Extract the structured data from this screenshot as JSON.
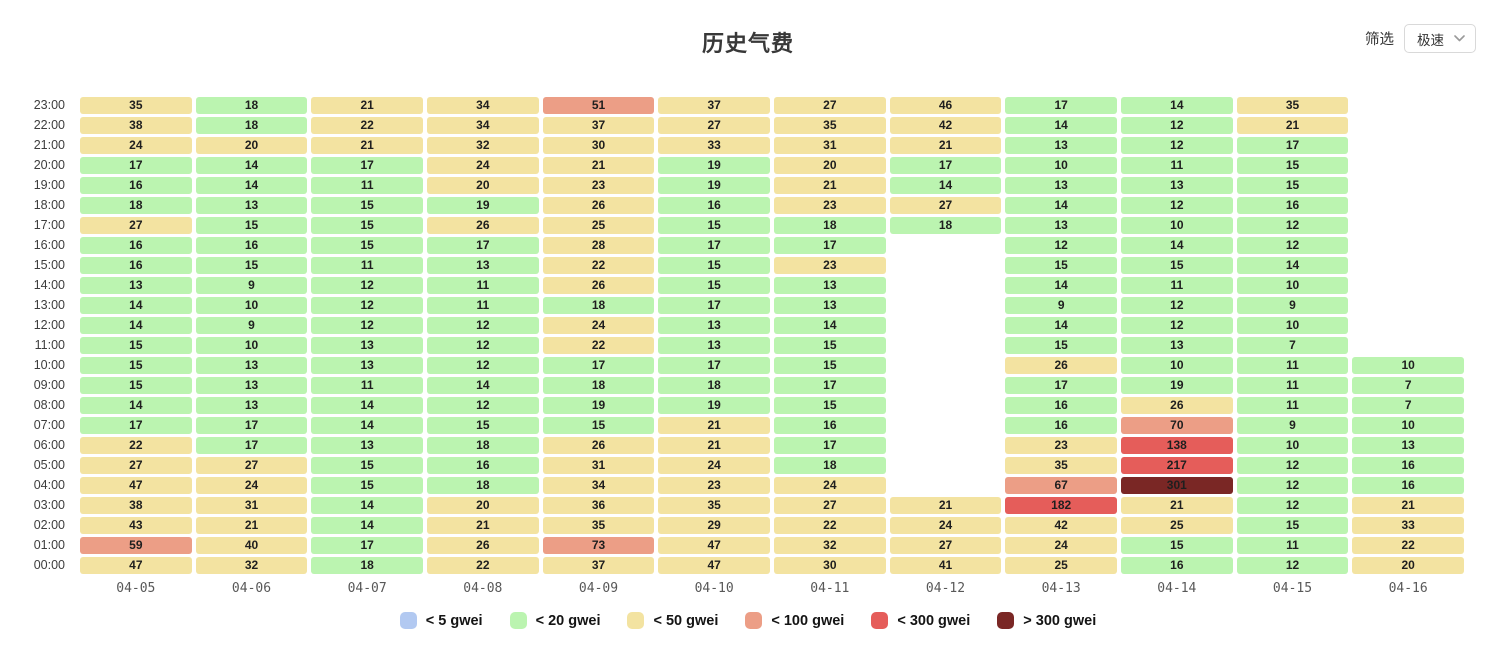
{
  "header": {
    "title": "历史气费",
    "filter_label": "筛选",
    "filter_value": "极速"
  },
  "chart_data": {
    "type": "heatmap",
    "title": "历史气费",
    "unit": "gwei",
    "columns": [
      "04-05",
      "04-06",
      "04-07",
      "04-08",
      "04-09",
      "04-10",
      "04-11",
      "04-12",
      "04-13",
      "04-14",
      "04-15",
      "04-16"
    ],
    "rows": [
      "23:00",
      "22:00",
      "21:00",
      "20:00",
      "19:00",
      "18:00",
      "17:00",
      "16:00",
      "15:00",
      "14:00",
      "13:00",
      "12:00",
      "11:00",
      "10:00",
      "09:00",
      "08:00",
      "07:00",
      "06:00",
      "05:00",
      "04:00",
      "03:00",
      "02:00",
      "01:00",
      "00:00"
    ],
    "color_scale": [
      {
        "label": "< 5 gwei",
        "max": 5,
        "color": "#b2c9f1"
      },
      {
        "label": "< 20 gwei",
        "max": 20,
        "color": "#bbf4b0"
      },
      {
        "label": "< 50 gwei",
        "max": 50,
        "color": "#f3e3a1"
      },
      {
        "label": "< 100 gwei",
        "max": 100,
        "color": "#ec9e86"
      },
      {
        "label": "< 300 gwei",
        "max": 300,
        "color": "#e55d5a"
      },
      {
        "label": "> 300 gwei",
        "max": null,
        "color": "#7a2725"
      }
    ],
    "values": [
      [
        35,
        18,
        21,
        34,
        51,
        37,
        27,
        46,
        17,
        14,
        35,
        null
      ],
      [
        38,
        18,
        22,
        34,
        37,
        27,
        35,
        42,
        14,
        12,
        21,
        null
      ],
      [
        24,
        20,
        21,
        32,
        30,
        33,
        31,
        21,
        13,
        12,
        17,
        null
      ],
      [
        17,
        14,
        17,
        24,
        21,
        19,
        20,
        17,
        10,
        11,
        15,
        null
      ],
      [
        16,
        14,
        11,
        20,
        23,
        19,
        21,
        14,
        13,
        13,
        15,
        null
      ],
      [
        18,
        13,
        15,
        19,
        26,
        16,
        23,
        27,
        14,
        12,
        16,
        null
      ],
      [
        27,
        15,
        15,
        26,
        25,
        15,
        18,
        18,
        13,
        10,
        12,
        null
      ],
      [
        16,
        16,
        15,
        17,
        28,
        17,
        17,
        null,
        12,
        14,
        12,
        null
      ],
      [
        16,
        15,
        11,
        13,
        22,
        15,
        23,
        null,
        15,
        15,
        14,
        null
      ],
      [
        13,
        9,
        12,
        11,
        26,
        15,
        13,
        null,
        14,
        11,
        10,
        null
      ],
      [
        14,
        10,
        12,
        11,
        18,
        17,
        13,
        null,
        9,
        12,
        9,
        null
      ],
      [
        14,
        9,
        12,
        12,
        24,
        13,
        14,
        null,
        14,
        12,
        10,
        null
      ],
      [
        15,
        10,
        13,
        12,
        22,
        13,
        15,
        null,
        15,
        13,
        7,
        null
      ],
      [
        15,
        13,
        13,
        12,
        17,
        17,
        15,
        null,
        26,
        10,
        11,
        10
      ],
      [
        15,
        13,
        11,
        14,
        18,
        18,
        17,
        null,
        17,
        19,
        11,
        7
      ],
      [
        14,
        13,
        14,
        12,
        19,
        19,
        15,
        null,
        16,
        26,
        11,
        7
      ],
      [
        17,
        17,
        14,
        15,
        15,
        21,
        16,
        null,
        16,
        70,
        9,
        10
      ],
      [
        22,
        17,
        13,
        18,
        26,
        21,
        17,
        null,
        23,
        138,
        10,
        13
      ],
      [
        27,
        27,
        15,
        16,
        31,
        24,
        18,
        null,
        35,
        217,
        12,
        16
      ],
      [
        47,
        24,
        15,
        18,
        34,
        23,
        24,
        null,
        67,
        301,
        12,
        16
      ],
      [
        38,
        31,
        14,
        20,
        36,
        35,
        27,
        21,
        182,
        21,
        12,
        21
      ],
      [
        43,
        21,
        14,
        21,
        35,
        29,
        22,
        24,
        42,
        25,
        15,
        33
      ],
      [
        59,
        40,
        17,
        26,
        73,
        47,
        32,
        27,
        24,
        15,
        11,
        22
      ],
      [
        47,
        32,
        18,
        22,
        37,
        47,
        30,
        41,
        25,
        16,
        12,
        20
      ]
    ]
  }
}
